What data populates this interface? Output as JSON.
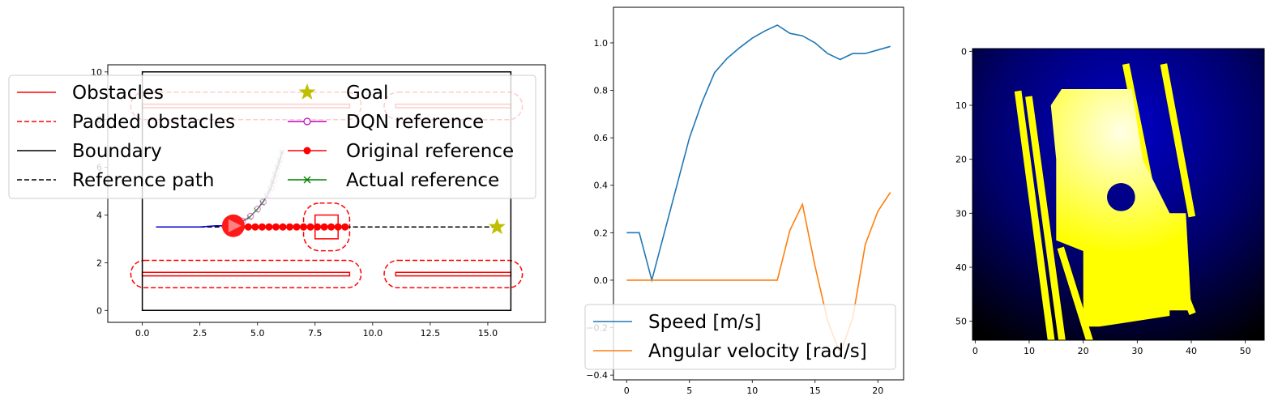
{
  "chart_data": [
    {
      "type": "line",
      "title": "",
      "xlabel": "",
      "ylabel": "",
      "xlim": [
        -1.5,
        17.5
      ],
      "ylim": [
        -0.5,
        10.3
      ],
      "xticks": [
        0.0,
        2.5,
        5.0,
        7.5,
        10.0,
        12.5,
        15.0
      ],
      "xtick_labels": [
        "0.0",
        "2.5",
        "5.0",
        "7.5",
        "10.0",
        "12.5",
        "15.0"
      ],
      "yticks": [
        0,
        2,
        4,
        6,
        8,
        10
      ],
      "ytick_labels": [
        "0",
        "2",
        "4",
        "6",
        "8",
        "10"
      ],
      "grid": false,
      "legend_position": "upper-left-outside",
      "legend": [
        {
          "label": "Obstacles",
          "style": "solid",
          "color": "#ff0000",
          "marker": "none"
        },
        {
          "label": "Padded obstacles",
          "style": "dashed",
          "color": "#ff0000",
          "marker": "none"
        },
        {
          "label": "Boundary",
          "style": "solid",
          "color": "#000000",
          "marker": "none"
        },
        {
          "label": "Reference path",
          "style": "dashed",
          "color": "#000000",
          "marker": "none"
        },
        {
          "label": "Goal",
          "style": "none",
          "color": "#bfbf00",
          "marker": "star"
        },
        {
          "label": "DQN reference",
          "style": "solid",
          "color": "#bf00bf",
          "marker": "circle-open"
        },
        {
          "label": "Original reference",
          "style": "solid",
          "color": "#ff0000",
          "marker": "circle"
        },
        {
          "label": "Actual reference",
          "style": "solid",
          "color": "#008000",
          "marker": "x"
        }
      ],
      "boundary": [
        [
          0,
          0
        ],
        [
          16,
          0
        ],
        [
          16,
          10
        ],
        [
          0,
          10
        ]
      ],
      "obstacles": [
        [
          [
            0,
            1.45
          ],
          [
            9,
            1.45
          ],
          [
            9,
            1.6
          ],
          [
            0,
            1.6
          ]
        ],
        [
          [
            11,
            1.45
          ],
          [
            16,
            1.45
          ],
          [
            16,
            1.6
          ],
          [
            11,
            1.6
          ]
        ],
        [
          [
            0,
            8.5
          ],
          [
            9,
            8.5
          ],
          [
            9,
            8.65
          ],
          [
            0,
            8.65
          ]
        ],
        [
          [
            11,
            8.5
          ],
          [
            16,
            8.5
          ],
          [
            16,
            8.65
          ],
          [
            11,
            8.65
          ]
        ],
        [
          [
            7.5,
            3.0
          ],
          [
            8.5,
            3.0
          ],
          [
            8.5,
            4.0
          ],
          [
            7.5,
            4.0
          ]
        ]
      ],
      "padded_obstacles": [
        [
          [
            -0.5,
            0.95
          ],
          [
            9.5,
            0.95
          ],
          [
            9.5,
            2.1
          ],
          [
            -0.5,
            2.1
          ]
        ],
        [
          [
            10.5,
            0.95
          ],
          [
            16.5,
            0.95
          ],
          [
            16.5,
            2.1
          ],
          [
            10.5,
            2.1
          ]
        ],
        [
          [
            -0.5,
            8.0
          ],
          [
            9.5,
            8.0
          ],
          [
            9.5,
            9.15
          ],
          [
            -0.5,
            9.15
          ]
        ],
        [
          [
            10.5,
            8.0
          ],
          [
            16.5,
            8.0
          ],
          [
            16.5,
            9.15
          ],
          [
            10.5,
            9.15
          ]
        ],
        [
          [
            7.0,
            2.5
          ],
          [
            9.0,
            2.5
          ],
          [
            9.0,
            4.5
          ],
          [
            7.0,
            4.5
          ]
        ]
      ],
      "reference_path": [
        [
          0.6,
          3.5
        ],
        [
          15.4,
          3.5
        ]
      ],
      "goal": [
        15.4,
        3.5
      ],
      "robot_position": [
        3.95,
        3.55
      ],
      "trajectory": [
        [
          0.6,
          3.5
        ],
        [
          1.5,
          3.5
        ],
        [
          2.5,
          3.5
        ],
        [
          3.2,
          3.55
        ],
        [
          3.95,
          3.55
        ]
      ],
      "original_reference": [
        [
          3.95,
          3.5
        ],
        [
          4.3,
          3.5
        ],
        [
          4.6,
          3.5
        ],
        [
          4.9,
          3.5
        ],
        [
          5.2,
          3.5
        ],
        [
          5.5,
          3.5
        ],
        [
          5.8,
          3.5
        ],
        [
          6.1,
          3.5
        ],
        [
          6.4,
          3.5
        ],
        [
          6.7,
          3.5
        ],
        [
          7.0,
          3.5
        ],
        [
          7.3,
          3.5
        ],
        [
          7.6,
          3.5
        ],
        [
          7.9,
          3.5
        ],
        [
          8.2,
          3.5
        ],
        [
          8.5,
          3.5
        ],
        [
          8.8,
          3.5
        ]
      ],
      "dqn_reference": [
        [
          4.35,
          3.75
        ],
        [
          4.7,
          3.95
        ],
        [
          5.0,
          4.25
        ],
        [
          5.25,
          4.55
        ],
        [
          5.45,
          4.85
        ],
        [
          5.6,
          5.15
        ],
        [
          5.7,
          5.45
        ],
        [
          5.8,
          5.75
        ],
        [
          5.9,
          6.05
        ],
        [
          6.0,
          6.35
        ],
        [
          6.1,
          6.7
        ]
      ],
      "actual_reference": [
        [
          4.3,
          3.7
        ],
        [
          4.65,
          3.9
        ],
        [
          4.95,
          4.2
        ],
        [
          5.2,
          4.5
        ],
        [
          5.4,
          4.8
        ],
        [
          5.55,
          5.1
        ],
        [
          5.65,
          5.4
        ],
        [
          5.75,
          5.7
        ],
        [
          5.85,
          6.0
        ],
        [
          5.95,
          6.3
        ],
        [
          6.05,
          6.65
        ]
      ]
    },
    {
      "type": "line",
      "title": "",
      "xlabel": "",
      "ylabel": "",
      "xlim": [
        -1.05,
        22.05
      ],
      "ylim": [
        -0.42,
        1.15
      ],
      "xticks": [
        0,
        5,
        10,
        15,
        20
      ],
      "xtick_labels": [
        "0",
        "5",
        "10",
        "15",
        "20"
      ],
      "yticks": [
        -0.4,
        -0.2,
        0.0,
        0.2,
        0.4,
        0.6,
        0.8,
        1.0
      ],
      "ytick_labels": [
        "−0.4",
        "−0.2",
        "0.0",
        "0.2",
        "0.4",
        "0.6",
        "0.8",
        "1.0"
      ],
      "grid": false,
      "legend_position": "lower-left",
      "x": [
        0,
        1,
        2,
        3,
        4,
        5,
        6,
        7,
        8,
        9,
        10,
        11,
        12,
        13,
        14,
        15,
        16,
        17,
        18,
        19,
        20,
        21
      ],
      "series": [
        {
          "name": "Speed [m/s]",
          "color": "#1f77b4",
          "values": [
            0.2,
            0.2,
            0.0,
            0.2,
            0.4,
            0.6,
            0.75,
            0.875,
            0.935,
            0.98,
            1.02,
            1.05,
            1.075,
            1.04,
            1.03,
            1.0,
            0.955,
            0.93,
            0.955,
            0.955,
            0.97,
            0.985
          ]
        },
        {
          "name": "Angular velocity [rad/s]",
          "color": "#ff7f0e",
          "values": [
            0.0,
            0.0,
            0.0,
            0.0,
            0.0,
            0.0,
            0.0,
            0.0,
            0.0,
            0.0,
            0.0,
            0.0,
            0.0,
            0.21,
            0.32,
            0.06,
            -0.17,
            -0.31,
            -0.16,
            0.15,
            0.29,
            0.37
          ]
        }
      ]
    },
    {
      "type": "heatmap",
      "title": "",
      "xlabel": "",
      "ylabel": "",
      "xlim": [
        -0.5,
        53.5
      ],
      "ylim": [
        53.5,
        -0.5
      ],
      "xticks": [
        0,
        10,
        20,
        30,
        40,
        50
      ],
      "xtick_labels": [
        "0",
        "10",
        "20",
        "30",
        "40",
        "50"
      ],
      "yticks": [
        0,
        10,
        20,
        30,
        40,
        50
      ],
      "ytick_labels": [
        "0",
        "10",
        "20",
        "30",
        "40",
        "50"
      ],
      "grid": false,
      "colors": {
        "background_dark": "#000000",
        "background_glow": "#0000cc",
        "free_space": "#ffff00",
        "free_highlight": "#ffffe6",
        "obstacle": "#000088"
      },
      "glow_center": [
        27,
        15
      ],
      "walls": [
        {
          "from": [
            10,
            9
          ],
          "to": [
            16,
            53
          ]
        },
        {
          "from": [
            8,
            8
          ],
          "to": [
            14,
            53
          ]
        },
        {
          "from": [
            28,
            3
          ],
          "to": [
            33,
            28
          ]
        },
        {
          "from": [
            35,
            3
          ],
          "to": [
            40,
            30
          ]
        },
        {
          "from": [
            16,
            37
          ],
          "to": [
            21,
            53
          ]
        },
        {
          "from": [
            36,
            38
          ],
          "to": [
            40,
            48
          ]
        }
      ],
      "free_region": [
        [
          16,
          7
        ],
        [
          29,
          7
        ],
        [
          31,
          20
        ],
        [
          36,
          30
        ],
        [
          39,
          30
        ],
        [
          40,
          48
        ],
        [
          36,
          48
        ],
        [
          36,
          49
        ],
        [
          23,
          51
        ],
        [
          20,
          51
        ],
        [
          20,
          37
        ],
        [
          15,
          35
        ],
        [
          15,
          20
        ],
        [
          14,
          10
        ]
      ],
      "obstacle_blobs": [
        [
          27,
          27,
          2.6
        ]
      ]
    }
  ]
}
